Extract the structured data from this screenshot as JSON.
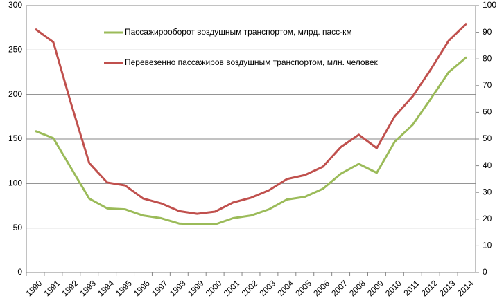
{
  "chart_data": {
    "type": "line",
    "categories": [
      "1990",
      "1991",
      "1992",
      "1993",
      "1994",
      "1995",
      "1996",
      "1997",
      "1998",
      "1999",
      "2000",
      "2001",
      "2002",
      "2003",
      "2004",
      "2005",
      "2006",
      "2007",
      "2008",
      "2009",
      "2010",
      "2011",
      "2012",
      "2013",
      "2014"
    ],
    "series": [
      {
        "name": "Пассажирооборот воздушным транспортом, млрд. пасс-км",
        "color": "#9bbb59",
        "axis": "y",
        "values": [
          159,
          151,
          117,
          83,
          72,
          71,
          64,
          61,
          55,
          54,
          54,
          61,
          64,
          71,
          82,
          85,
          94,
          111,
          122,
          112,
          147,
          166,
          195,
          225,
          242
        ]
      },
      {
        "name": "Перевезенно  пассажиров воздушным транспортом, млн. человек",
        "color": "#c0504d",
        "axis": "y2",
        "values": [
          91.2,
          86.3,
          63,
          41,
          33.7,
          32.6,
          27.7,
          25.9,
          23,
          22,
          22.8,
          26.2,
          28,
          30.8,
          35,
          36.5,
          39.6,
          47,
          51.6,
          46.6,
          58.5,
          66,
          76,
          86.8,
          93.3
        ]
      }
    ],
    "ylim": [
      0,
      300
    ],
    "yticks": [
      0,
      50,
      100,
      150,
      200,
      250,
      300
    ],
    "y2lim": [
      0,
      100
    ],
    "y2ticks": [
      0,
      10,
      20,
      30,
      40,
      50,
      60,
      70,
      80,
      90,
      100
    ],
    "grid": true
  }
}
